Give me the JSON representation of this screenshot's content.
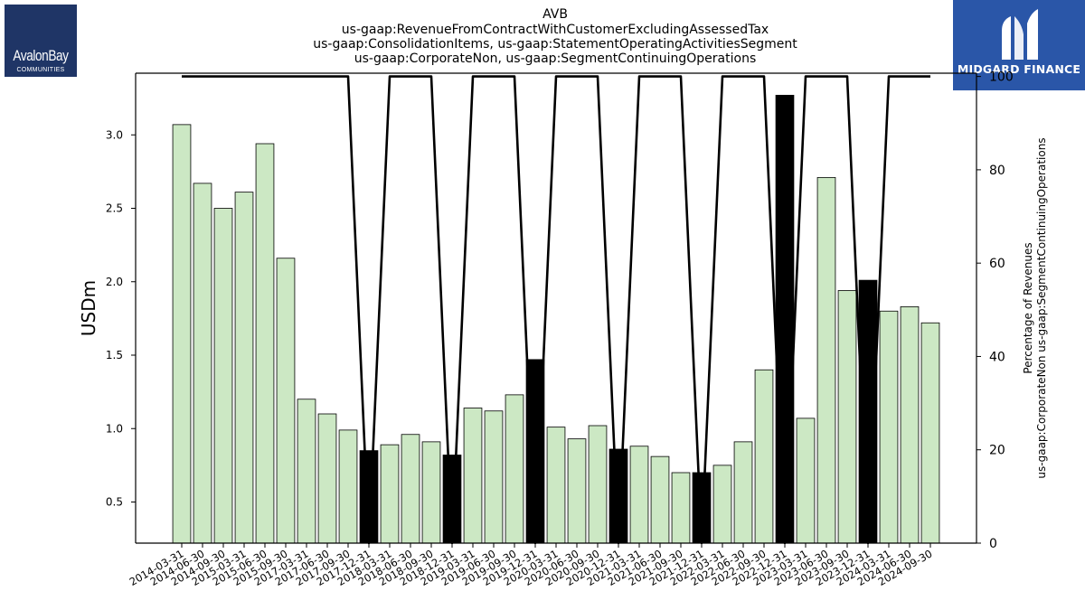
{
  "title_lines": [
    "AVB",
    "us-gaap:RevenueFromContractWithCustomerExcludingAssessedTax",
    "us-gaap:ConsolidationItems, us-gaap:StatementOperatingActivitiesSegment",
    "us-gaap:CorporateNon, us-gaap:SegmentContinuingOperations"
  ],
  "logos": {
    "left": {
      "name": "AvalonBay",
      "sub": "COMMUNITIES",
      "color": "#1f3566"
    },
    "right": {
      "brand": "MIDGARD FINANCE",
      "color": "#2a56a8"
    }
  },
  "chart_data": {
    "type": "bar",
    "ylabel": "USDm",
    "y2label_lines": [
      "Percentage of Revenues",
      "us-gaap:CorporateNon us-gaap:SegmentContinuingOperations"
    ],
    "ylim": [
      0.22,
      3.42
    ],
    "y2lim": [
      0,
      100.7
    ],
    "yticks": [
      0.5,
      1.0,
      1.5,
      2.0,
      2.5,
      3.0
    ],
    "ytick_labels": [
      "0.5",
      "1.0",
      "1.5",
      "2.0",
      "2.5",
      "3.0"
    ],
    "y2ticks": [
      0,
      20,
      40,
      60,
      80,
      100
    ],
    "y2tick_labels": [
      "0",
      "20",
      "40",
      "60",
      "80",
      "100"
    ],
    "bar_color_default": "#cce8c4",
    "bar_color_highlight": "#000000",
    "line_color": "#000000",
    "categories": [
      "2014-03-31",
      "2014-06-30",
      "2014-09-30",
      "2015-03-31",
      "2015-06-30",
      "2015-09-30",
      "2017-03-31",
      "2017-06-30",
      "2017-09-30",
      "2017-12-31",
      "2018-03-31",
      "2018-06-30",
      "2018-09-30",
      "2018-12-31",
      "2019-03-31",
      "2019-06-30",
      "2019-09-30",
      "2019-12-31",
      "2020-03-31",
      "2020-06-30",
      "2020-09-30",
      "2020-12-31",
      "2021-03-31",
      "2021-06-30",
      "2021-09-30",
      "2021-12-31",
      "2022-03-31",
      "2022-06-30",
      "2022-09-30",
      "2022-12-31",
      "2023-03-31",
      "2023-06-30",
      "2023-09-30",
      "2023-12-31",
      "2024-03-31",
      "2024-06-30",
      "2024-09-30"
    ],
    "values": [
      3.07,
      2.67,
      2.5,
      2.61,
      2.94,
      2.16,
      1.2,
      1.1,
      0.99,
      0.85,
      0.89,
      0.96,
      0.91,
      0.82,
      1.14,
      1.12,
      1.23,
      1.47,
      1.01,
      0.93,
      1.02,
      0.86,
      0.88,
      0.81,
      0.7,
      0.7,
      0.75,
      0.91,
      1.4,
      3.27,
      1.07,
      2.71,
      1.94,
      2.01,
      1.8,
      1.83,
      1.72
    ],
    "highlight": [
      false,
      false,
      false,
      false,
      false,
      false,
      false,
      false,
      false,
      true,
      false,
      false,
      false,
      true,
      false,
      false,
      false,
      true,
      false,
      false,
      false,
      true,
      false,
      false,
      false,
      true,
      false,
      false,
      false,
      true,
      false,
      false,
      false,
      true,
      false,
      false,
      false
    ],
    "percentage": [
      100,
      100,
      100,
      100,
      100,
      100,
      100,
      100,
      100,
      0,
      100,
      100,
      100,
      0,
      100,
      100,
      100,
      0,
      100,
      100,
      100,
      0,
      100,
      100,
      100,
      0,
      100,
      100,
      100,
      0,
      100,
      100,
      100,
      0,
      100,
      100,
      100
    ]
  }
}
